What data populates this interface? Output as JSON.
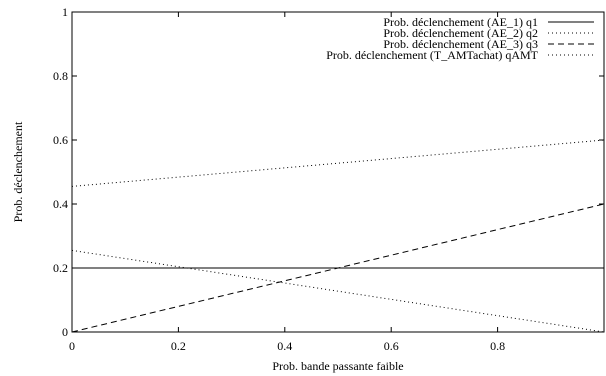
{
  "chart_data": {
    "type": "line",
    "title": "",
    "xlabel": "Prob.  bande passante faible",
    "ylabel": "Prob. déclenchement",
    "xlim": [
      0,
      1
    ],
    "ylim": [
      0,
      1
    ],
    "x_ticks": [
      0,
      0.2,
      0.4,
      0.6,
      0.8
    ],
    "x_tick_labels": [
      "0",
      "0.2",
      "0.4",
      "0.6",
      "0.8"
    ],
    "y_ticks": [
      0,
      0.2,
      0.4,
      0.6,
      0.8,
      1
    ],
    "y_tick_labels": [
      "0",
      "0.2",
      "0.4",
      "0.6",
      "0.8",
      "1"
    ],
    "grid": false,
    "legend_position": "top-right",
    "series": [
      {
        "name": "Prob. déclenchement (AE_1) q1",
        "style": "solid",
        "x": [
          0,
          1
        ],
        "y": [
          0.2,
          0.2
        ]
      },
      {
        "name": "Prob. déclenchement (AE_2) q2",
        "style": "dotted",
        "x": [
          0,
          1
        ],
        "y": [
          0.255,
          0.0
        ]
      },
      {
        "name": "Prob. déclenchement (AE_3) q3",
        "style": "dashed",
        "x": [
          0,
          1
        ],
        "y": [
          0.0,
          0.4
        ]
      },
      {
        "name": "Prob. déclenchement (T_AMTachat) qAMT",
        "style": "dotted",
        "x": [
          0,
          1
        ],
        "y": [
          0.455,
          0.6
        ]
      }
    ]
  }
}
